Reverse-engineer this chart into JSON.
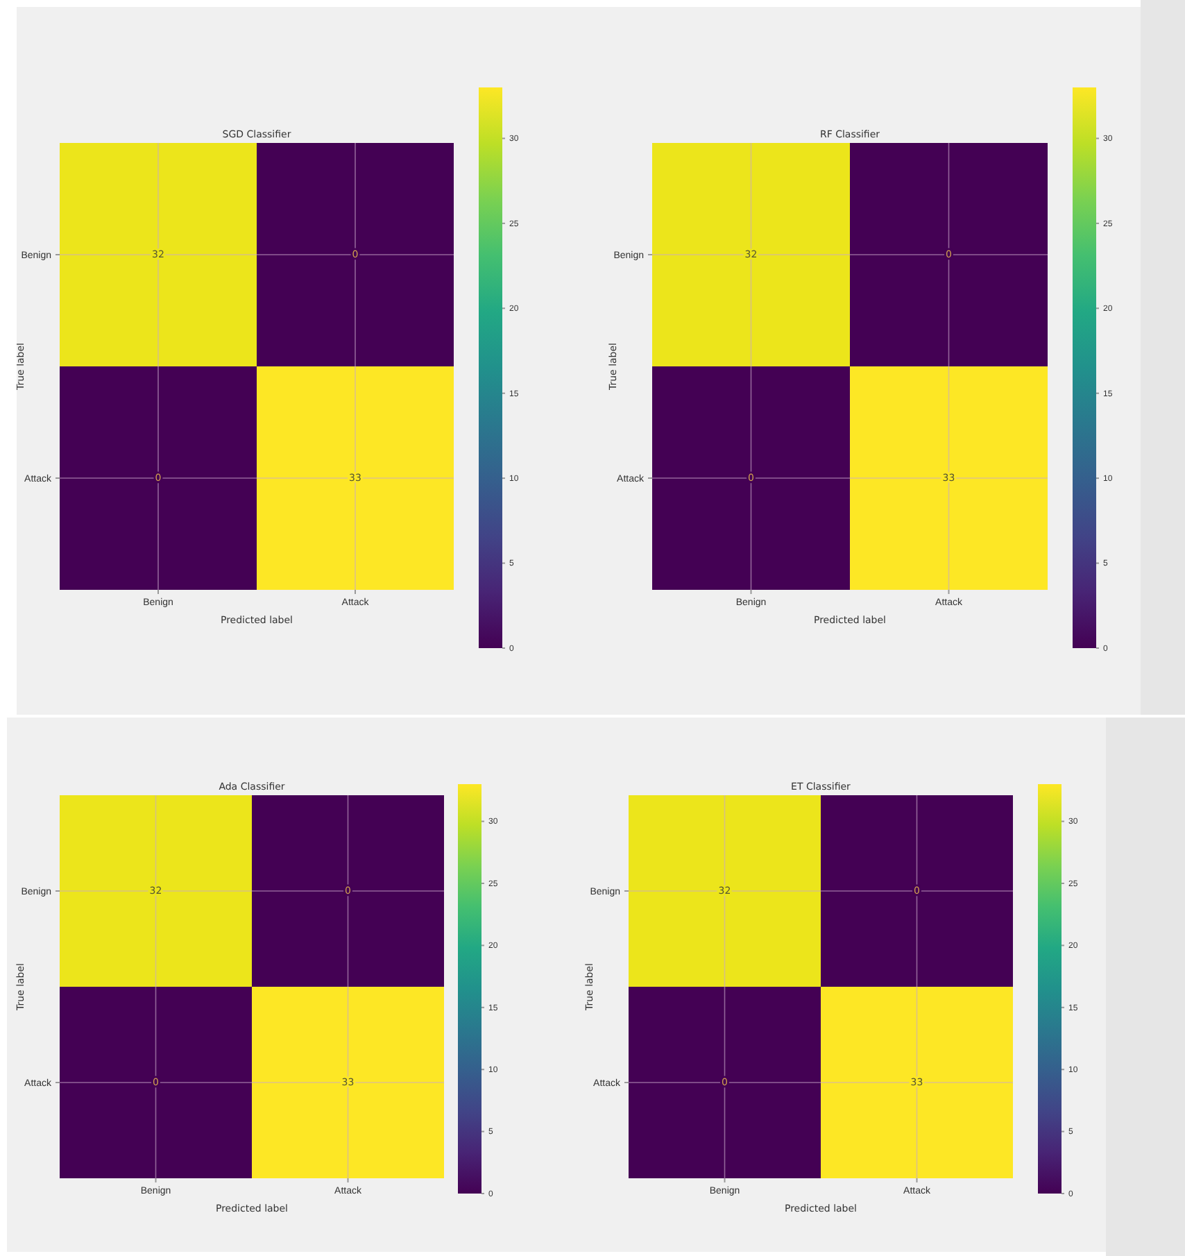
{
  "chart_data": [
    {
      "type": "heatmap",
      "title": "SGD Classifier",
      "xlabel": "Predicted label",
      "ylabel": "True label",
      "categories": [
        "Benign",
        "Attack"
      ],
      "y_categories": [
        "Benign",
        "Attack"
      ],
      "cells": [
        [
          32,
          0
        ],
        [
          0,
          33
        ]
      ],
      "data_labels": true,
      "clim": [
        0,
        33
      ],
      "cticks": [
        0,
        5,
        10,
        15,
        20,
        25,
        30
      ],
      "grid": true
    },
    {
      "type": "heatmap",
      "title": "RF Classifier",
      "xlabel": "Predicted label",
      "ylabel": "True label",
      "categories": [
        "Benign",
        "Attack"
      ],
      "y_categories": [
        "Benign",
        "Attack"
      ],
      "cells": [
        [
          32,
          0
        ],
        [
          0,
          33
        ]
      ],
      "data_labels": true,
      "clim": [
        0,
        33
      ],
      "cticks": [
        0,
        5,
        10,
        15,
        20,
        25,
        30
      ],
      "grid": true
    },
    {
      "type": "heatmap",
      "title": "Ada Classifier",
      "xlabel": "Predicted label",
      "ylabel": "True label",
      "categories": [
        "Benign",
        "Attack"
      ],
      "y_categories": [
        "Benign",
        "Attack"
      ],
      "cells": [
        [
          32,
          0
        ],
        [
          0,
          33
        ]
      ],
      "data_labels": true,
      "clim": [
        0,
        33
      ],
      "cticks": [
        0,
        5,
        10,
        15,
        20,
        25,
        30
      ],
      "grid": true
    },
    {
      "type": "heatmap",
      "title": "ET Classifier",
      "xlabel": "Predicted label",
      "ylabel": "True label",
      "categories": [
        "Benign",
        "Attack"
      ],
      "y_categories": [
        "Benign",
        "Attack"
      ],
      "cells": [
        [
          32,
          0
        ],
        [
          0,
          33
        ]
      ],
      "data_labels": true,
      "clim": [
        0,
        33
      ],
      "cticks": [
        0,
        5,
        10,
        15,
        20,
        25,
        30
      ],
      "grid": true
    }
  ]
}
